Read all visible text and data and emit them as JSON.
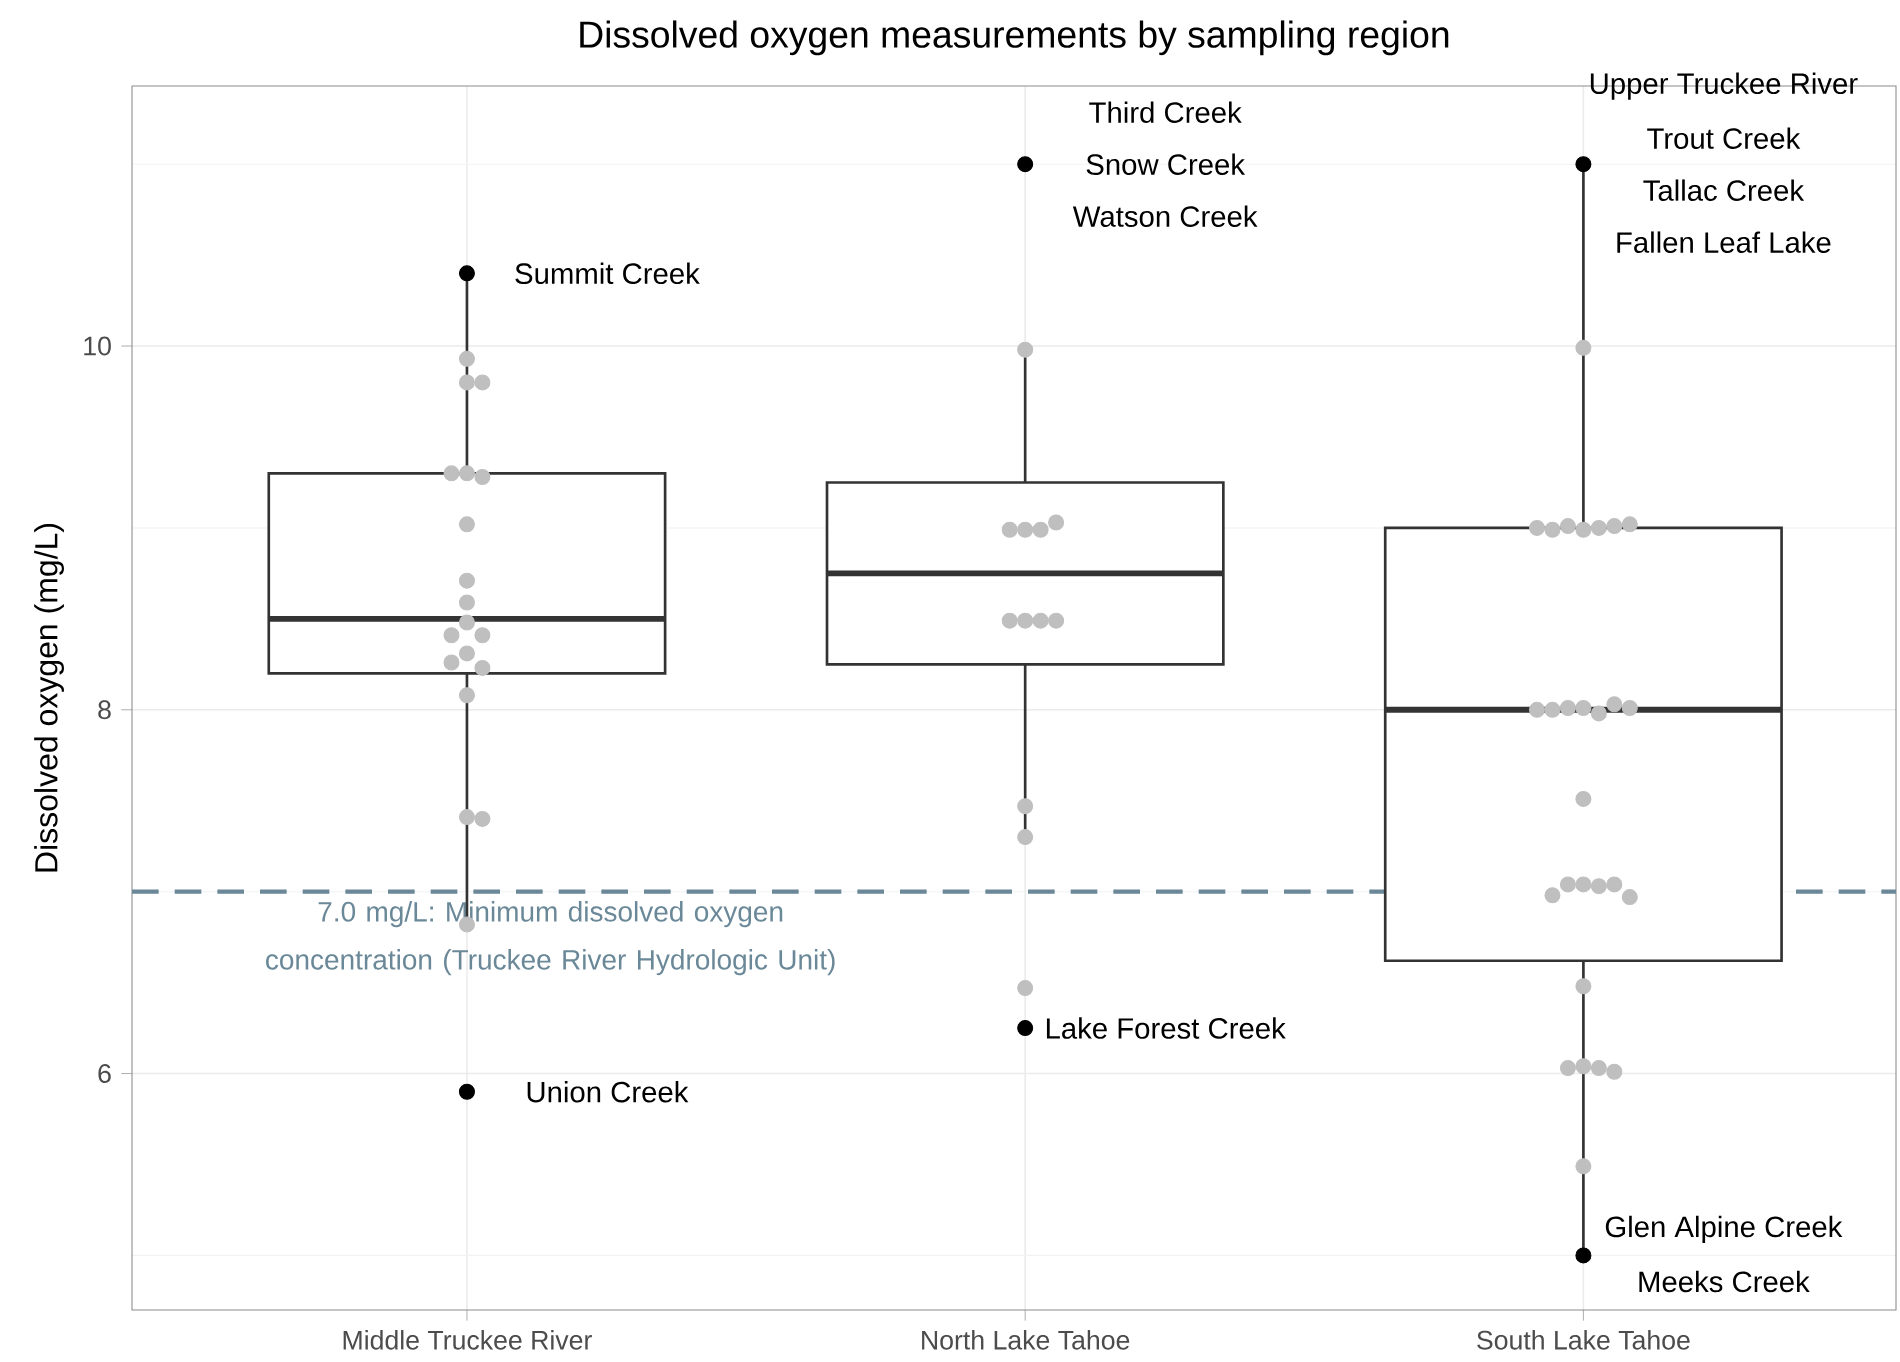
{
  "chart_data": {
    "type": "box",
    "title": "Dissolved oxygen measurements by sampling region",
    "ylabel": "Dissolved oxygen (mg/L)",
    "categories": [
      "Middle Truckee River",
      "North Lake Tahoe",
      "South Lake Tahoe"
    ],
    "ylim": [
      4.7,
      11.43
    ],
    "yticks": [
      6,
      8,
      10
    ],
    "grid": true,
    "marker": "circle",
    "series": [
      {
        "type": "box",
        "color": "#333333",
        "boxes": [
          {
            "low": 6.8,
            "q1": 8.2,
            "median": 8.5,
            "q3": 9.3,
            "high": 10.4
          },
          {
            "low": 7.3,
            "q1": 8.25,
            "median": 8.75,
            "q3": 9.25,
            "high": 10.0
          },
          {
            "low": 5.0,
            "q1": 6.62,
            "median": 8.0,
            "q3": 9.0,
            "high": 11.0
          }
        ]
      },
      {
        "type": "scatter",
        "color": "#bfbfbf",
        "x": [
          "Middle Truckee River",
          "Middle Truckee River",
          "Middle Truckee River",
          "Middle Truckee River",
          "Middle Truckee River",
          "Middle Truckee River",
          "Middle Truckee River",
          "Middle Truckee River",
          "Middle Truckee River",
          "Middle Truckee River",
          "Middle Truckee River",
          "Middle Truckee River",
          "Middle Truckee River",
          "Middle Truckee River",
          "Middle Truckee River",
          "Middle Truckee River",
          "Middle Truckee River",
          "Middle Truckee River",
          "Middle Truckee River",
          "North Lake Tahoe",
          "North Lake Tahoe",
          "North Lake Tahoe",
          "North Lake Tahoe",
          "North Lake Tahoe",
          "North Lake Tahoe",
          "North Lake Tahoe",
          "North Lake Tahoe",
          "North Lake Tahoe",
          "North Lake Tahoe",
          "North Lake Tahoe",
          "North Lake Tahoe",
          "South Lake Tahoe",
          "South Lake Tahoe",
          "South Lake Tahoe",
          "South Lake Tahoe",
          "South Lake Tahoe",
          "South Lake Tahoe",
          "South Lake Tahoe",
          "South Lake Tahoe",
          "South Lake Tahoe",
          "South Lake Tahoe",
          "South Lake Tahoe",
          "South Lake Tahoe",
          "South Lake Tahoe",
          "South Lake Tahoe",
          "South Lake Tahoe",
          "South Lake Tahoe",
          "South Lake Tahoe",
          "South Lake Tahoe",
          "South Lake Tahoe",
          "South Lake Tahoe",
          "South Lake Tahoe",
          "South Lake Tahoe",
          "South Lake Tahoe",
          "South Lake Tahoe",
          "South Lake Tahoe",
          "South Lake Tahoe",
          "South Lake Tahoe",
          "South Lake Tahoe"
        ],
        "values": [
          9.8,
          9.8,
          9.93,
          9.3,
          9.28,
          9.3,
          9.02,
          8.71,
          8.59,
          8.48,
          8.41,
          8.41,
          8.31,
          8.23,
          8.26,
          8.08,
          7.41,
          7.4,
          6.82,
          9.98,
          8.99,
          8.99,
          8.99,
          9.03,
          8.49,
          8.49,
          8.49,
          8.49,
          7.47,
          7.3,
          6.47,
          9.99,
          8.99,
          9.0,
          9.01,
          9.01,
          8.99,
          9.02,
          9.0,
          8.01,
          7.98,
          8.01,
          8.03,
          8.0,
          8.01,
          8.0,
          7.51,
          7.04,
          7.03,
          7.04,
          7.04,
          6.98,
          6.97,
          6.48,
          6.04,
          6.03,
          6.03,
          6.01,
          5.49
        ]
      },
      {
        "type": "scatter",
        "color": "#000000",
        "x": [
          "Middle Truckee River",
          "Middle Truckee River",
          "North Lake Tahoe",
          "North Lake Tahoe",
          "South Lake Tahoe",
          "South Lake Tahoe"
        ],
        "values": [
          10.4,
          5.9,
          11.0,
          6.25,
          11.0,
          5.0
        ]
      }
    ],
    "ref_lines": [
      {
        "axis": "y",
        "value": 7.0,
        "label": "7.0 mg/L: Minimum dissolved oxygen concentration (Truckee River Hydrologic Unit)",
        "color": "#6a8898",
        "line_style": "dashed"
      }
    ],
    "annotations": [
      {
        "text": "Summit Creek",
        "x": "Middle Truckee River",
        "y": 10.4
      },
      {
        "text": "Union Creek",
        "x": "Middle Truckee River",
        "y": 5.9
      },
      {
        "text": "Third Creek",
        "x": "North Lake Tahoe",
        "y": 11.0
      },
      {
        "text": "Snow Creek",
        "x": "North Lake Tahoe",
        "y": 11.0
      },
      {
        "text": "Watson Creek",
        "x": "North Lake Tahoe",
        "y": 11.0
      },
      {
        "text": "Lake Forest Creek",
        "x": "North Lake Tahoe",
        "y": 6.25
      },
      {
        "text": "Upper Truckee River",
        "x": "South Lake Tahoe",
        "y": 11.0
      },
      {
        "text": "Trout Creek",
        "x": "South Lake Tahoe",
        "y": 11.0
      },
      {
        "text": "Tallac Creek",
        "x": "South Lake Tahoe",
        "y": 11.0
      },
      {
        "text": "Fallen Leaf Lake",
        "x": "South Lake Tahoe",
        "y": 11.0
      },
      {
        "text": "Glen Alpine Creek",
        "x": "South Lake Tahoe",
        "y": 5.0
      },
      {
        "text": "Meeks Creek",
        "x": "South Lake Tahoe",
        "y": 5.0
      }
    ]
  }
}
